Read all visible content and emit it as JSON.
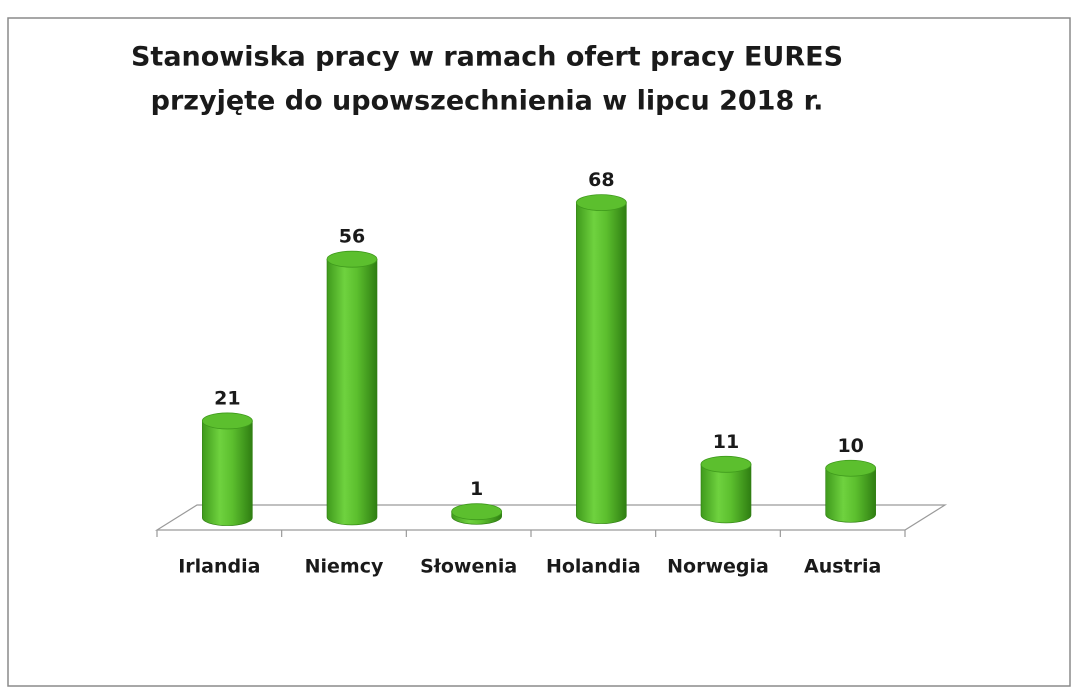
{
  "chart_data": {
    "type": "bar3d",
    "title": [
      "Stanowiska pracy w ramach ofert pracy EURES",
      "przyjęte do upowszechnienia w lipcu 2018 r."
    ],
    "categories": [
      "Irlandia",
      "Niemcy",
      "Słowenia",
      "Holandia",
      "Norwegia",
      "Austria"
    ],
    "values": [
      21,
      56,
      1,
      68,
      11,
      10
    ],
    "color": "#5cbf2e"
  }
}
